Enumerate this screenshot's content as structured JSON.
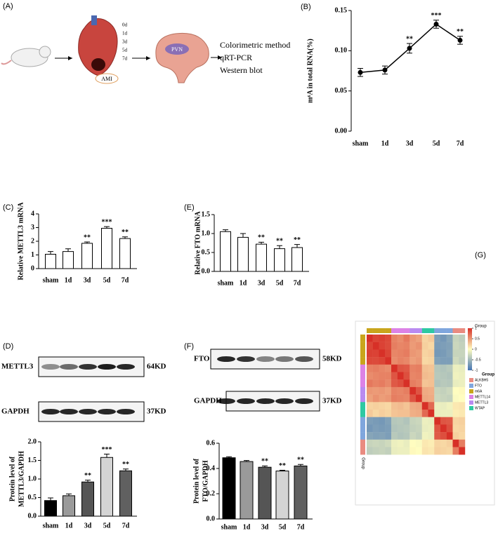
{
  "panel_labels": [
    "(A)",
    "(B)",
    "(C)",
    "(D)",
    "(E)",
    "(F)",
    "(G)"
  ],
  "schematic": {
    "timepoints": [
      "0d",
      "1d",
      "3d",
      "5d",
      "7d"
    ],
    "heart_label": "AMI",
    "brain_label": "PVN",
    "methods": [
      "Colorimetric method",
      "qRT-PCR",
      "Western blot"
    ]
  },
  "blots": [
    {
      "rows": [
        {
          "label": "METTL3",
          "size": "64KD"
        },
        {
          "label": "GAPDH",
          "size": "37KD"
        }
      ]
    },
    {
      "rows": [
        {
          "label": "FTO",
          "size": "58KD"
        },
        {
          "label": "GAPDH",
          "size": "37KD"
        }
      ]
    }
  ],
  "chart_data": [
    {
      "type": "line",
      "y_label": [
        "m⁶A in total RNA(%)"
      ],
      "categories": [
        "sham",
        "1d",
        "3d",
        "5d",
        "7d"
      ],
      "values": [
        0.073,
        0.076,
        0.103,
        0.133,
        0.113
      ],
      "errors": [
        0.005,
        0.005,
        0.006,
        0.005,
        0.005
      ],
      "annotations": [
        null,
        null,
        "**",
        "***",
        "**"
      ],
      "color": "#000000",
      "ylim": [
        0,
        0.15
      ],
      "yticks": [
        {
          "value": 0,
          "label": "0.00"
        },
        {
          "value": 0.05,
          "label": "0.05"
        },
        {
          "value": 0.1,
          "label": "0.10"
        },
        {
          "value": 0.15,
          "label": "0.15"
        }
      ]
    },
    {
      "type": "bar",
      "y_label": [
        "Relative METTL3 mRNA"
      ],
      "categories": [
        "sham",
        "1d",
        "3d",
        "5d",
        "7d"
      ],
      "values": [
        1.05,
        1.25,
        1.85,
        2.95,
        2.2
      ],
      "errors": [
        0.2,
        0.2,
        0.1,
        0.12,
        0.12
      ],
      "annotations": [
        null,
        null,
        "**",
        "***",
        "**"
      ],
      "colors": [
        "#ffffff",
        "#ffffff",
        "#ffffff",
        "#ffffff",
        "#ffffff"
      ],
      "ylim": [
        0,
        4
      ],
      "yticks": [
        0,
        1,
        2,
        3,
        4
      ]
    },
    {
      "type": "bar",
      "y_label": [
        "Relative FTO mRNA"
      ],
      "categories": [
        "sham",
        "1d",
        "3d",
        "5d",
        "7d"
      ],
      "values": [
        1.05,
        0.9,
        0.72,
        0.6,
        0.63
      ],
      "errors": [
        0.05,
        0.1,
        0.05,
        0.08,
        0.08
      ],
      "annotations": [
        null,
        null,
        "**",
        "**",
        "**"
      ],
      "colors": [
        "#ffffff",
        "#ffffff",
        "#ffffff",
        "#ffffff",
        "#ffffff"
      ],
      "ylim": [
        0,
        1.5
      ],
      "yticks": [
        {
          "value": 0,
          "label": "0.0"
        },
        {
          "value": 0.5,
          "label": "0.5"
        },
        {
          "value": 1,
          "label": "1.0"
        },
        {
          "value": 1.5,
          "label": "1.5"
        }
      ]
    },
    {
      "type": "bar",
      "y_label": [
        "Protein level of",
        "METTL3/GAPDH"
      ],
      "categories": [
        "sham",
        "1d",
        "3d",
        "5d",
        "7d"
      ],
      "values": [
        0.42,
        0.55,
        0.92,
        1.58,
        1.22
      ],
      "errors": [
        0.07,
        0.05,
        0.05,
        0.09,
        0.05
      ],
      "annotations": [
        null,
        null,
        "**",
        "***",
        "**"
      ],
      "colors": [
        "#000000",
        "#9a9a9a",
        "#555555",
        "#d4d4d4",
        "#606060"
      ],
      "ylim": [
        0,
        2
      ],
      "yticks": [
        {
          "value": 0,
          "label": "0.0"
        },
        {
          "value": 0.5,
          "label": "0.5"
        },
        {
          "value": 1,
          "label": "1.0"
        },
        {
          "value": 1.5,
          "label": "1.5"
        },
        {
          "value": 2,
          "label": "2.0"
        }
      ]
    },
    {
      "type": "bar",
      "y_label": [
        "Protein level of",
        "FTO/GAPDH"
      ],
      "categories": [
        "sham",
        "1d",
        "3d",
        "5d",
        "7d"
      ],
      "values": [
        0.485,
        0.455,
        0.41,
        0.38,
        0.42
      ],
      "errors": [
        0.008,
        0.008,
        0.01,
        0.006,
        0.012
      ],
      "annotations": [
        null,
        null,
        "**",
        "**",
        "**"
      ],
      "colors": [
        "#000000",
        "#9a9a9a",
        "#555555",
        "#d4d4d4",
        "#606060"
      ],
      "ylim": [
        0,
        0.6
      ],
      "yticks": [
        {
          "value": 0,
          "label": "0.0"
        },
        {
          "value": 0.2,
          "label": "0.2"
        },
        {
          "value": 0.4,
          "label": "0.4"
        },
        {
          "value": 0.6,
          "label": "0.6"
        }
      ]
    },
    {
      "type": "heatmap",
      "col_annotation_label": "Group",
      "row_annotation_label": "Group",
      "legend_title": "Group",
      "groups": [
        {
          "name": "ALKBH5",
          "color": "#e98b80"
        },
        {
          "name": "FTO",
          "color": "#7fa6dd"
        },
        {
          "name": "m6A",
          "color": "#c9a51c"
        },
        {
          "name": "METTL14",
          "color": "#dc82e6"
        },
        {
          "name": "METTL3",
          "color": "#b98af0"
        },
        {
          "name": "WTAP",
          "color": "#2ec9a2"
        }
      ],
      "row_groups": [
        "m6A",
        "m6A",
        "m6A",
        "m6A",
        "METTL14",
        "METTL14",
        "METTL14",
        "METTL3",
        "METTL3",
        "WTAP",
        "WTAP",
        "FTO",
        "FTO",
        "FTO",
        "ALKBH5",
        "ALKBH5"
      ],
      "colorscale": [
        "#4575b4",
        "#fffdc0",
        "#d73027"
      ],
      "clim": [
        -1,
        1
      ],
      "cticks": [
        1,
        0.5,
        0,
        -0.5,
        -1
      ],
      "matrix": [
        [
          1,
          0.9,
          0.92,
          0.88,
          0.6,
          0.55,
          0.65,
          0.5,
          0.45,
          0.2,
          0.25,
          -0.7,
          -0.75,
          -0.65,
          -0.3,
          -0.35
        ],
        [
          0.9,
          1,
          0.91,
          0.87,
          0.62,
          0.58,
          0.6,
          0.48,
          0.52,
          0.22,
          0.18,
          -0.72,
          -0.7,
          -0.68,
          -0.28,
          -0.32
        ],
        [
          0.92,
          0.91,
          1,
          0.9,
          0.58,
          0.6,
          0.63,
          0.5,
          0.47,
          0.2,
          0.23,
          -0.74,
          -0.72,
          -0.66,
          -0.3,
          -0.3
        ],
        [
          0.88,
          0.87,
          0.9,
          1,
          0.55,
          0.6,
          0.57,
          0.46,
          0.5,
          0.18,
          0.2,
          -0.68,
          -0.7,
          -0.7,
          -0.26,
          -0.33
        ],
        [
          0.6,
          0.62,
          0.58,
          0.55,
          1,
          0.82,
          0.8,
          0.6,
          0.62,
          0.3,
          0.28,
          -0.4,
          -0.42,
          -0.38,
          -0.1,
          -0.12
        ],
        [
          0.55,
          0.58,
          0.6,
          0.6,
          0.82,
          1,
          0.85,
          0.58,
          0.6,
          0.32,
          0.3,
          -0.38,
          -0.4,
          -0.42,
          -0.08,
          -0.1
        ],
        [
          0.65,
          0.6,
          0.63,
          0.57,
          0.8,
          0.85,
          1,
          0.62,
          0.58,
          0.28,
          0.3,
          -0.42,
          -0.38,
          -0.4,
          -0.12,
          -0.1
        ],
        [
          0.5,
          0.48,
          0.5,
          0.46,
          0.6,
          0.58,
          0.62,
          1,
          0.82,
          0.4,
          0.38,
          -0.3,
          -0.32,
          -0.28,
          0,
          0.02
        ],
        [
          0.45,
          0.52,
          0.47,
          0.5,
          0.62,
          0.6,
          0.58,
          0.82,
          1,
          0.42,
          0.4,
          -0.28,
          -0.3,
          -0.32,
          -0.02,
          0
        ],
        [
          0.2,
          0.22,
          0.2,
          0.18,
          0.3,
          0.32,
          0.28,
          0.4,
          0.42,
          1,
          0.72,
          -0.1,
          -0.12,
          -0.08,
          0.1,
          0.12
        ],
        [
          0.25,
          0.18,
          0.23,
          0.2,
          0.28,
          0.3,
          0.3,
          0.38,
          0.4,
          0.72,
          1,
          -0.12,
          -0.1,
          -0.1,
          0.08,
          0.1
        ],
        [
          -0.7,
          -0.72,
          -0.74,
          -0.68,
          -0.4,
          -0.38,
          -0.42,
          -0.3,
          -0.28,
          -0.1,
          -0.12,
          1,
          0.82,
          0.8,
          0.2,
          0.22
        ],
        [
          -0.75,
          -0.7,
          -0.72,
          -0.7,
          -0.42,
          -0.4,
          -0.38,
          -0.32,
          -0.3,
          -0.12,
          -0.1,
          0.82,
          1,
          0.85,
          0.18,
          0.2
        ],
        [
          -0.65,
          -0.68,
          -0.66,
          -0.7,
          -0.38,
          -0.42,
          -0.4,
          -0.28,
          -0.32,
          -0.08,
          -0.1,
          0.8,
          0.85,
          1,
          0.22,
          0.18
        ],
        [
          -0.3,
          -0.28,
          -0.3,
          -0.26,
          -0.1,
          -0.08,
          -0.12,
          0,
          -0.02,
          0.1,
          0.08,
          0.2,
          0.18,
          0.22,
          1,
          0.62
        ],
        [
          -0.35,
          -0.32,
          -0.3,
          -0.33,
          -0.12,
          -0.1,
          -0.1,
          0.02,
          0,
          0.12,
          0.1,
          0.22,
          0.2,
          0.18,
          0.62,
          1
        ]
      ]
    }
  ]
}
